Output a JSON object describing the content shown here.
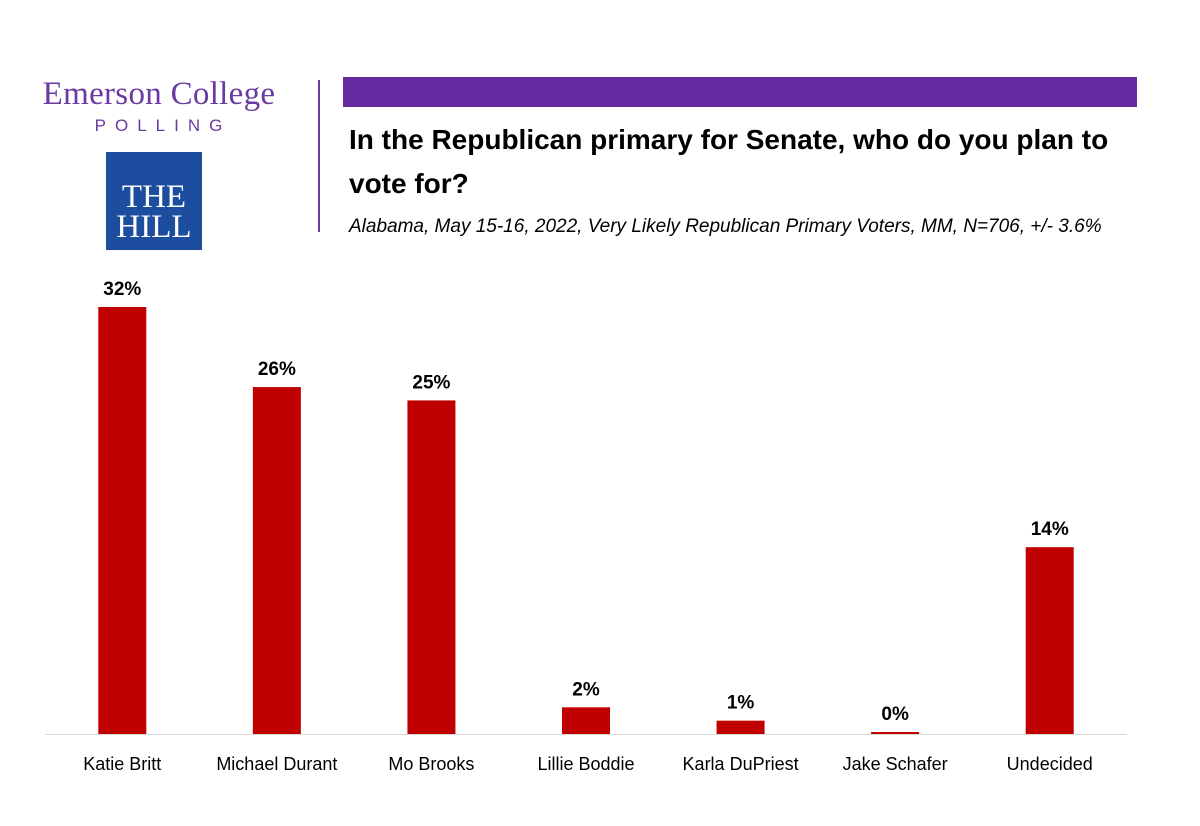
{
  "brand": {
    "name": "Emerson College",
    "sub": "POLLING",
    "partner_line1": "THE",
    "partner_line2": "HILL"
  },
  "colors": {
    "brand_purple": "#6629a0",
    "bar": "#c00000",
    "partner_blue": "#1d4d9f"
  },
  "chart_data": {
    "type": "bar",
    "title": "In the Republican primary for Senate, who do you plan to vote for?",
    "subtitle": "Alabama, May 15-16, 2022, Very Likely Republican Primary Voters, MM, N=706, +/- 3.6%",
    "categories": [
      "Katie Britt",
      "Michael Durant",
      "Mo Brooks",
      "Lillie Boddie",
      "Karla DuPriest",
      "Jake Schafer",
      "Undecided"
    ],
    "values": [
      32,
      26,
      25,
      2,
      1,
      0,
      14
    ],
    "value_labels": [
      "32%",
      "26%",
      "25%",
      "2%",
      "1%",
      "0%",
      "14%"
    ],
    "xlabel": "",
    "ylabel": "",
    "ylim": [
      0,
      32
    ],
    "grid": false,
    "legend": "none"
  }
}
